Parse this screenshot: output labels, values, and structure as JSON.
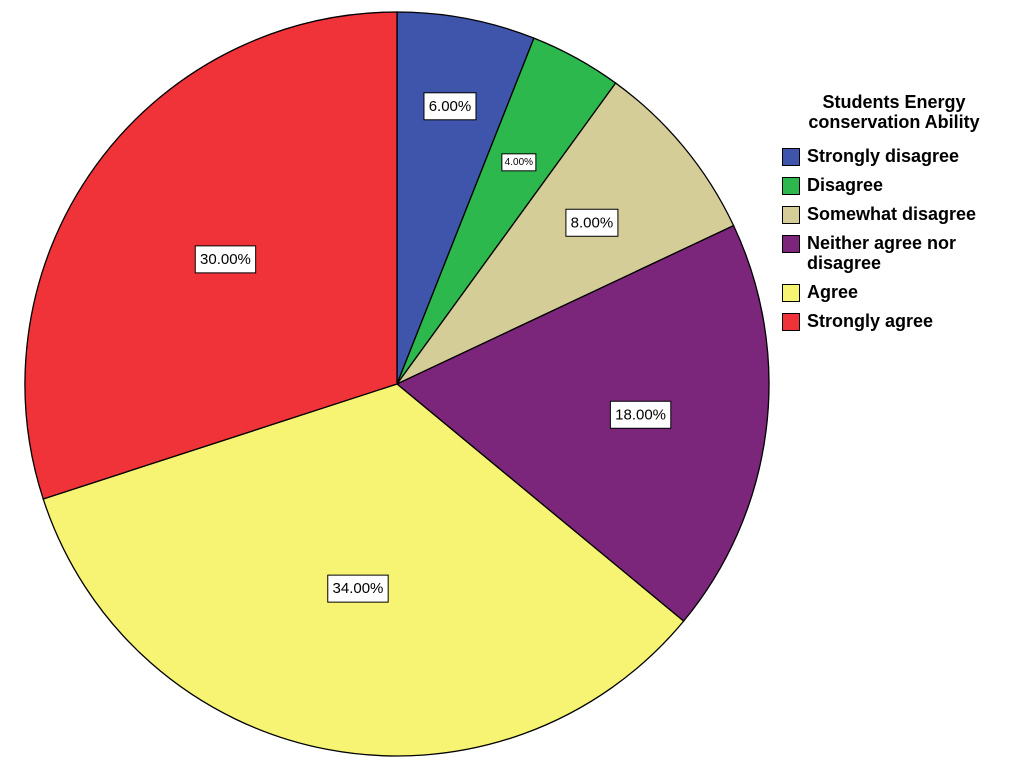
{
  "chart_data": {
    "type": "pie",
    "legend_title": "Students Energy conservation Ability",
    "legend_position": "right",
    "start_angle_deg": 0,
    "direction": "clockwise",
    "slices": [
      {
        "label": "Strongly disagree",
        "value": 6,
        "display": "6.00%",
        "color": "#3E55AB"
      },
      {
        "label": "Disagree",
        "value": 4,
        "display": "4.00%",
        "color": "#2DB84D"
      },
      {
        "label": "Somewhat disagree",
        "value": 8,
        "display": "8.00%",
        "color": "#D4CD98"
      },
      {
        "label": "Neither agree nor disagree",
        "value": 18,
        "display": "18.00%",
        "color": "#7B267A"
      },
      {
        "label": "Agree",
        "value": 34,
        "display": "34.00%",
        "color": "#F8F473"
      },
      {
        "label": "Strongly agree",
        "value": 30,
        "display": "30.00%",
        "color": "#EF3338"
      }
    ]
  }
}
